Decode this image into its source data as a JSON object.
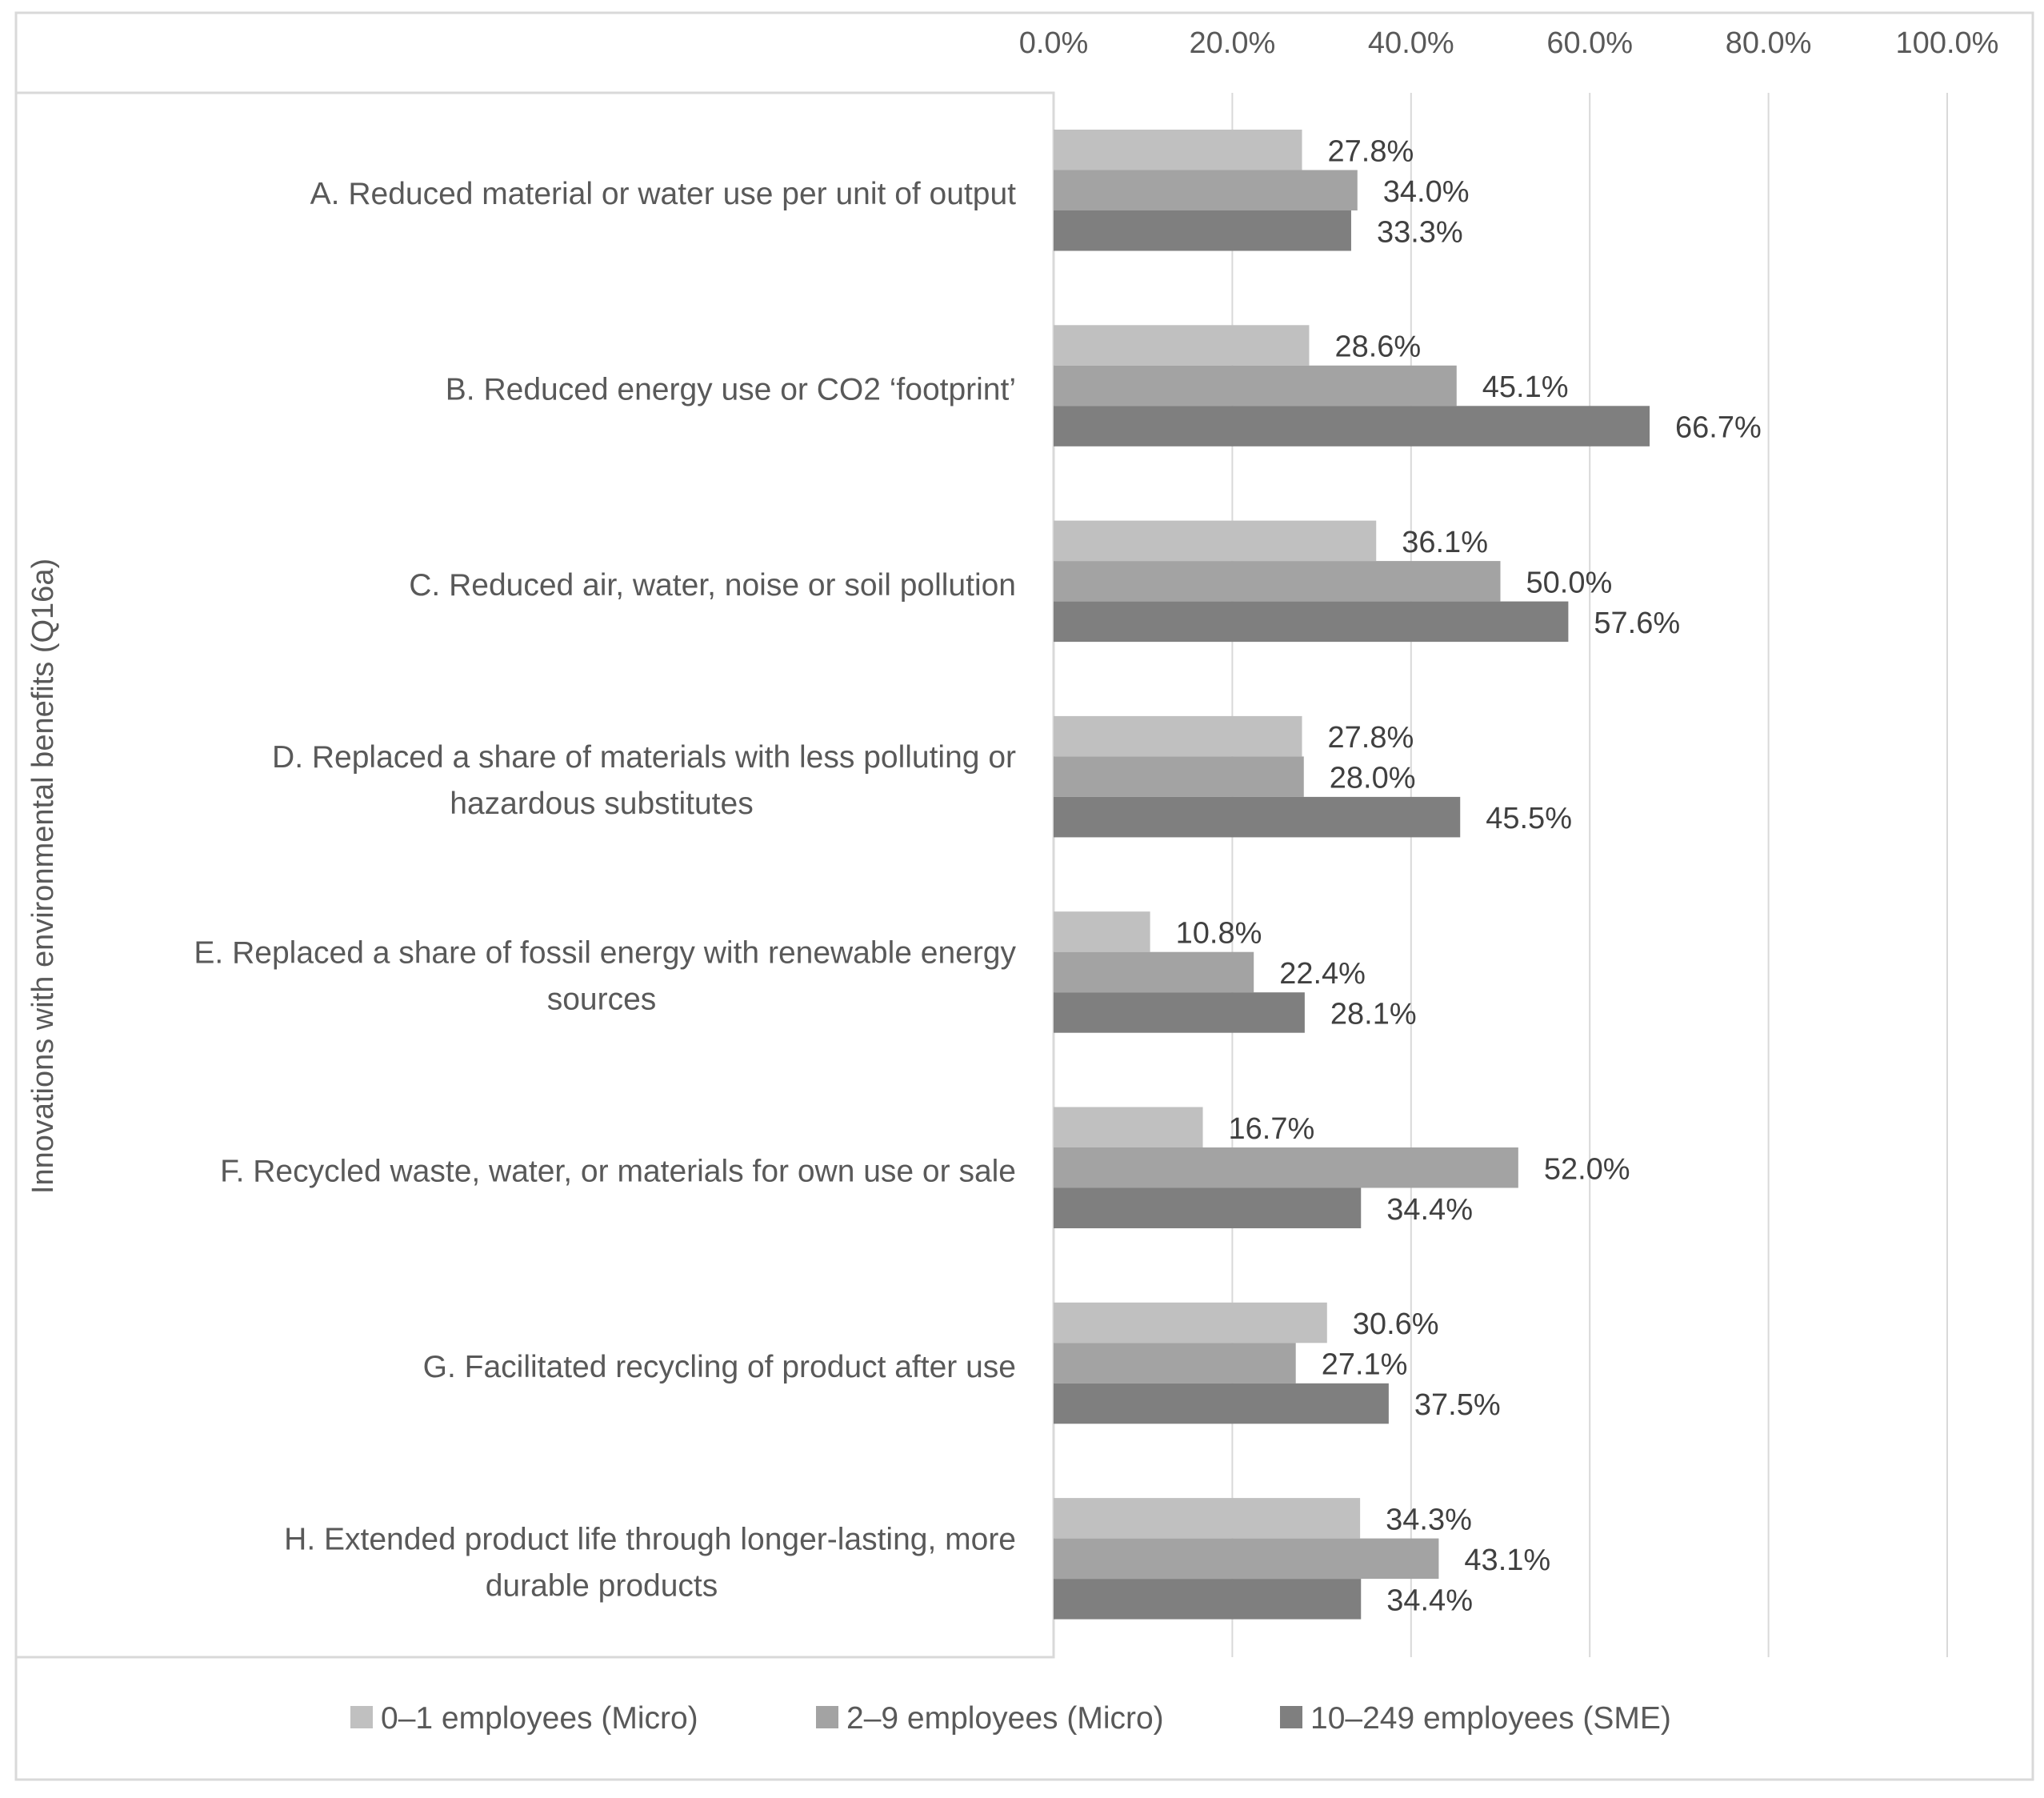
{
  "chart_data": {
    "type": "bar",
    "orientation": "horizontal",
    "title": "",
    "xlabel": "",
    "ylabel": "Innovations with environmental benefits (Q16a)",
    "xlim": [
      0,
      100
    ],
    "x_ticks": [
      "0.0%",
      "20.0%",
      "40.0%",
      "60.0%",
      "80.0%",
      "100.0%"
    ],
    "grid": true,
    "legend_position": "bottom",
    "categories": [
      [
        "A. Reduced material or water use per unit of output"
      ],
      [
        "B. Reduced energy use or CO2 ‘footprint’"
      ],
      [
        "C. Reduced air, water, noise or soil pollution"
      ],
      [
        "D. Replaced a share of materials with less polluting or",
        "hazardous substitutes"
      ],
      [
        "E. Replaced a share of fossil energy with renewable energy",
        "sources"
      ],
      [
        "F. Recycled waste, water, or materials for own use or sale"
      ],
      [
        "G. Facilitated recycling of product after use"
      ],
      [
        "H. Extended product life through longer-lasting, more",
        "durable products"
      ]
    ],
    "series": [
      {
        "name": "0–1 employees (Micro)",
        "color": "#c0c0c0",
        "values": [
          27.8,
          28.6,
          36.1,
          27.8,
          10.8,
          16.7,
          30.6,
          34.3
        ],
        "labels": [
          "27.8%",
          "28.6%",
          "36.1%",
          "27.8%",
          "10.8%",
          "16.7%",
          "30.6%",
          "34.3%"
        ]
      },
      {
        "name": "2–9 employees (Micro)",
        "color": "#a3a3a3",
        "values": [
          34.0,
          45.1,
          50.0,
          28.0,
          22.4,
          52.0,
          27.1,
          43.1
        ],
        "labels": [
          "34.0%",
          "45.1%",
          "50.0%",
          "28.0%",
          "22.4%",
          "52.0%",
          "27.1%",
          "43.1%"
        ]
      },
      {
        "name": "10–249 employees (SME)",
        "color": "#7f7f7f",
        "values": [
          33.3,
          66.7,
          57.6,
          45.5,
          28.1,
          34.4,
          37.5,
          34.4
        ],
        "labels": [
          "33.3%",
          "66.7%",
          "57.6%",
          "45.5%",
          "28.1%",
          "34.4%",
          "37.5%",
          "34.4%"
        ]
      }
    ]
  }
}
